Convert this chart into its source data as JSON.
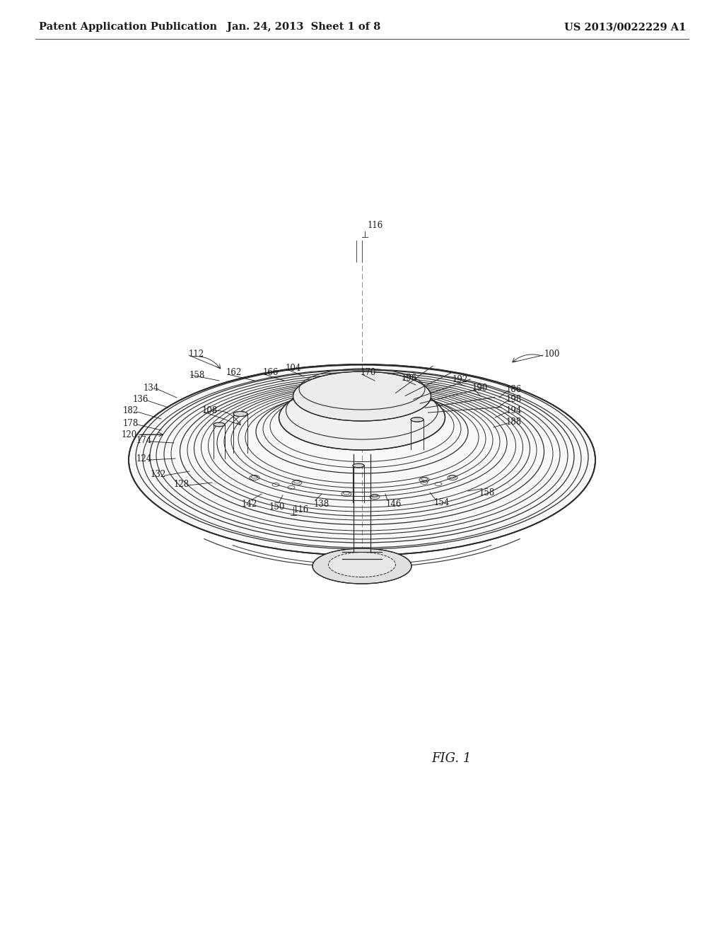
{
  "background_color": "#ffffff",
  "header_left": "Patent Application Publication",
  "header_center": "Jan. 24, 2013  Sheet 1 of 8",
  "header_right": "US 2013/0022229 A1",
  "fig_label": "FIG. 1",
  "header_fontsize": 10.5,
  "fig_label_fontsize": 13,
  "ref_fontsize": 8.5,
  "line_color": "#2a2a2a",
  "text_color": "#1a1a1a"
}
